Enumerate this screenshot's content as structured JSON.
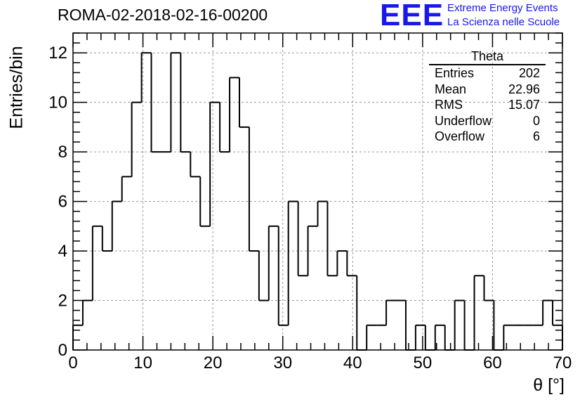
{
  "header": {
    "title": "ROMA-02-2018-02-16-00200",
    "logo_letters": "EEE",
    "logo_line1": "Extreme Energy Events",
    "logo_line2": "La Scienza nelle Scuole"
  },
  "stats": {
    "title": "Theta",
    "rows": [
      {
        "label": "Entries",
        "value": "202"
      },
      {
        "label": "Mean",
        "value": "22.96"
      },
      {
        "label": "RMS",
        "value": "15.07"
      },
      {
        "label": "Underflow",
        "value": "0"
      },
      {
        "label": "Overflow",
        "value": "6"
      }
    ]
  },
  "chart_data": {
    "type": "bar",
    "histogram": true,
    "title": "ROMA-02-2018-02-16-00200",
    "xlabel": "θ [°]",
    "ylabel": "Entries/bin",
    "xlim": [
      0,
      70
    ],
    "ylim": [
      0,
      12.8
    ],
    "bin_width": 1.4,
    "bin_edges_start": 0,
    "values": [
      1,
      2,
      5,
      4,
      6,
      7,
      10,
      12,
      8,
      8,
      12,
      8,
      7,
      5,
      10,
      8,
      11,
      9,
      4,
      2,
      5,
      1,
      6,
      3,
      5,
      6,
      3,
      4,
      3,
      0,
      1,
      1,
      2,
      2,
      0,
      1,
      0,
      1,
      0,
      2,
      0,
      3,
      2,
      0,
      1,
      1,
      1,
      1,
      2,
      1
    ],
    "x_ticks": [
      0,
      10,
      20,
      30,
      40,
      50,
      60,
      70
    ],
    "x_tick_labels": [
      "0",
      "10",
      "20",
      "30",
      "40",
      "50",
      "60",
      "70"
    ],
    "y_ticks": [
      0,
      2,
      4,
      6,
      8,
      10,
      12
    ],
    "y_tick_labels": [
      "0",
      "2",
      "4",
      "6",
      "8",
      "10",
      "12"
    ],
    "grid": true,
    "colors": {
      "line": "#000000",
      "grid": "#999999",
      "logo": "#1818e8"
    }
  }
}
